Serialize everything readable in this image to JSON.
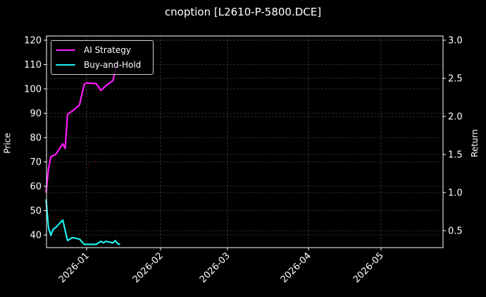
{
  "title": "cnoption [L2610-P-5800.DCE]",
  "colors": {
    "background": "#000000",
    "ai_strategy": "#ff1aff",
    "buy_and_hold": "#20f0f0",
    "price_dots": "#8b0000",
    "grid": "#555555",
    "axes": "#ffffff"
  },
  "legend": {
    "items": [
      {
        "label": "AI Strategy",
        "color": "#ff1aff"
      },
      {
        "label": "Buy-and-Hold",
        "color": "#20f0f0"
      }
    ]
  },
  "axes": {
    "left_label": "Price",
    "right_label": "Return",
    "left_ticks": [
      "40",
      "50",
      "60",
      "70",
      "80",
      "90",
      "100",
      "110",
      "120"
    ],
    "right_ticks": [
      "0.5",
      "1.0",
      "1.5",
      "2.0",
      "2.5",
      "3.0"
    ],
    "x_ticks": [
      "2026-01",
      "2026-02",
      "2026-03",
      "2026-04",
      "2026-05"
    ]
  },
  "chart_data": {
    "type": "line",
    "title": "cnoption [L2610-P-5800.DCE]",
    "xlabel": "",
    "ylabel": "Price",
    "ylabel_right": "Return",
    "ylim": [
      35,
      121
    ],
    "ylim_right": [
      0.34,
      3.05
    ],
    "x_tick_labels": [
      "2026-01",
      "2026-02",
      "2026-03",
      "2026-04",
      "2026-05"
    ],
    "grid": true,
    "legend_position": "upper left",
    "series": [
      {
        "name": "AI Strategy",
        "axis": "right",
        "color": "#ff1aff",
        "x": [
          "2025-12-15",
          "2025-12-16",
          "2025-12-17",
          "2025-12-19",
          "2025-12-22",
          "2025-12-23",
          "2025-12-24",
          "2025-12-26",
          "2025-12-29",
          "2025-12-31",
          "2026-01-01",
          "2026-01-05",
          "2026-01-07",
          "2026-01-09",
          "2026-01-12",
          "2026-01-14"
        ],
        "values": [
          1.0,
          1.31,
          1.47,
          1.5,
          1.64,
          1.58,
          2.03,
          2.07,
          2.15,
          2.42,
          2.44,
          2.43,
          2.34,
          2.4,
          2.47,
          2.73
        ]
      },
      {
        "name": "Buy-and-Hold",
        "axis": "right",
        "color": "#20f0f0",
        "x": [
          "2025-12-15",
          "2025-12-16",
          "2025-12-17",
          "2025-12-18",
          "2025-12-19",
          "2025-12-22",
          "2025-12-24",
          "2025-12-26",
          "2025-12-29",
          "2025-12-31",
          "2026-01-05",
          "2026-01-07",
          "2026-01-08",
          "2026-01-09",
          "2026-01-12",
          "2026-01-13",
          "2026-01-14",
          "2026-01-15"
        ],
        "values": [
          0.91,
          0.54,
          0.44,
          0.52,
          0.54,
          0.64,
          0.37,
          0.41,
          0.39,
          0.32,
          0.32,
          0.36,
          0.34,
          0.36,
          0.34,
          0.37,
          0.33,
          0.32
        ]
      },
      {
        "name": "Price",
        "axis": "left",
        "color": "#8b0000",
        "style": "faint dots",
        "values": [
          62,
          74,
          77,
          76,
          70,
          78,
          69,
          70,
          71,
          72,
          75,
          70
        ]
      }
    ]
  }
}
